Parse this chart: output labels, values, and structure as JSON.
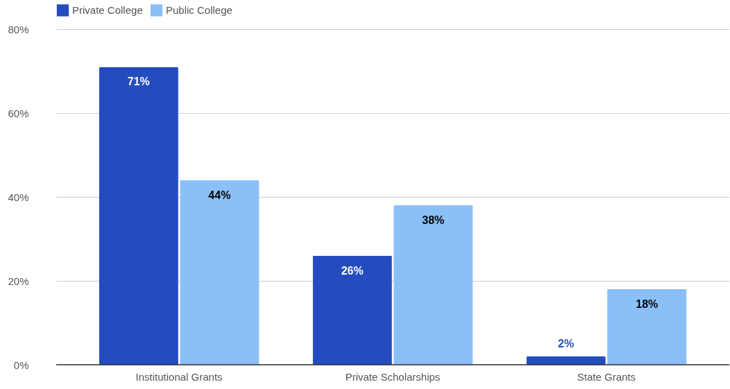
{
  "chart_data": {
    "type": "bar",
    "categories": [
      "Institutional Grants",
      "Private Scholarships",
      "State Grants"
    ],
    "series": [
      {
        "name": "Private College",
        "color": "#234dbf",
        "values": [
          71,
          26,
          2
        ],
        "value_labels": [
          "71%",
          "26%",
          "2%"
        ]
      },
      {
        "name": "Public College",
        "color": "#8bbff7",
        "values": [
          44,
          38,
          18
        ],
        "value_labels": [
          "44%",
          "38%",
          "18%"
        ]
      }
    ],
    "ylim": [
      0,
      80
    ],
    "yticks": [
      {
        "value": 0,
        "label": "0%"
      },
      {
        "value": 20,
        "label": "20%"
      },
      {
        "value": 40,
        "label": "40%"
      },
      {
        "value": 60,
        "label": "60%"
      },
      {
        "value": 80,
        "label": "80%"
      }
    ],
    "grid": "y",
    "legend": "top"
  }
}
